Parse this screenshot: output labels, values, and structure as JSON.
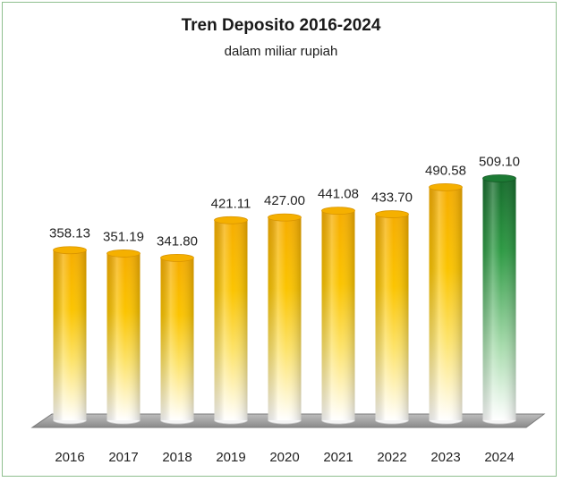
{
  "chart_data": {
    "type": "bar",
    "title": "Tren Deposito 2016-2024",
    "subtitle": "dalam miliar rupiah",
    "xlabel": "",
    "ylabel": "",
    "categories": [
      "2016",
      "2017",
      "2018",
      "2019",
      "2020",
      "2021",
      "2022",
      "2023",
      "2024"
    ],
    "values": [
      358.13,
      351.19,
      341.8,
      421.11,
      427.0,
      441.08,
      433.7,
      490.58,
      509.1
    ],
    "value_labels": [
      "358.13",
      "351.19",
      "341.80",
      "421.11",
      "427.00",
      "441.08",
      "433.70",
      "490.58",
      "509.10"
    ],
    "grid": false,
    "legend": "none",
    "colors": {
      "bar_gold": "#f5b400",
      "bar_highlight": "#1f7a35",
      "floor": "#9a9a9a"
    },
    "highlight_category": "2024"
  }
}
